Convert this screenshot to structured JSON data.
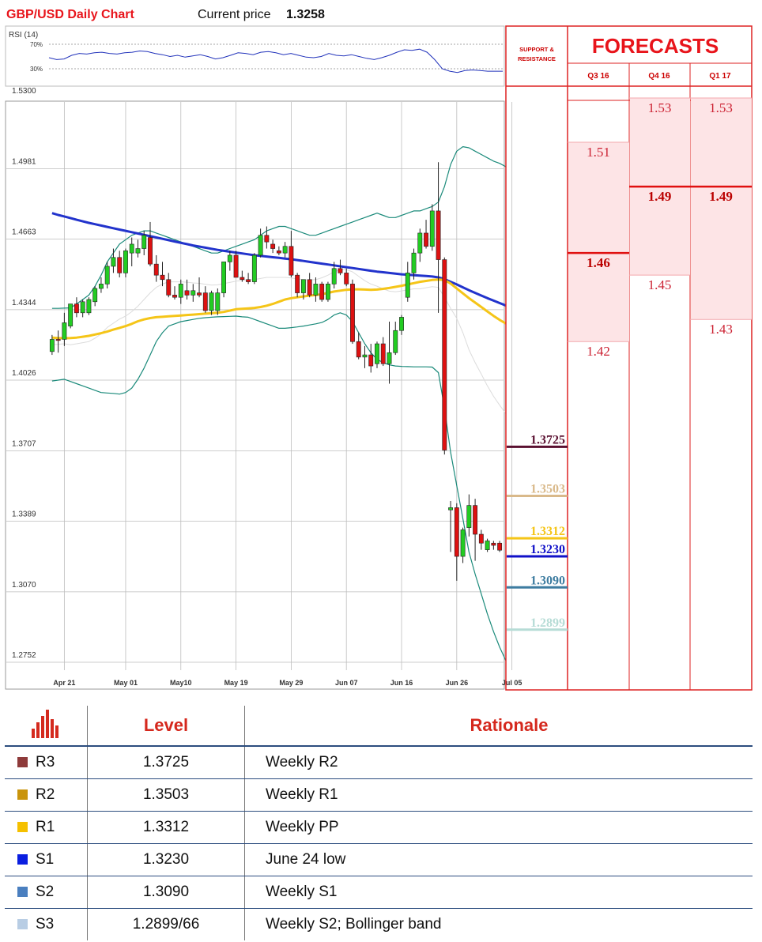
{
  "header": {
    "title": "GBP/USD Daily Chart",
    "price_label": "Current price",
    "price": "1.3258"
  },
  "rsi": {
    "label": "RSI (14)",
    "upper": "70%",
    "lower": "30%",
    "values": [
      48,
      45,
      46,
      52,
      55,
      54,
      56,
      57,
      55,
      54,
      56,
      57,
      59,
      58,
      55,
      53,
      50,
      52,
      49,
      51,
      53,
      50,
      46,
      48,
      52,
      56,
      55,
      53,
      57,
      58,
      56,
      53,
      55,
      52,
      49,
      48,
      50,
      55,
      52,
      51,
      53,
      50,
      47,
      45,
      48,
      52,
      57,
      61,
      60,
      62,
      57,
      45,
      30,
      26,
      24,
      27,
      28,
      27,
      26,
      26,
      26
    ]
  },
  "chart_data": {
    "type": "candlestick",
    "title": "GBP/USD Daily Chart",
    "ylim": [
      1.2752,
      1.53
    ],
    "y_ticks": [
      "1.5300",
      "1.4981",
      "1.4663",
      "1.4344",
      "1.4026",
      "1.3707",
      "1.3389",
      "1.3070",
      "1.2752"
    ],
    "x_labels": [
      "Apr 21",
      "May 01",
      "May10",
      "May 19",
      "May 29",
      "Jun 07",
      "Jun 16",
      "Jun 26",
      "Jul 05"
    ],
    "x_label_index": [
      2,
      12,
      21,
      30,
      39,
      48,
      57,
      66,
      75
    ],
    "candles": [
      {
        "o": 1.4155,
        "h": 1.423,
        "l": 1.414,
        "c": 1.421
      },
      {
        "o": 1.421,
        "h": 1.425,
        "l": 1.415,
        "c": 1.4205
      },
      {
        "o": 1.421,
        "h": 1.433,
        "l": 1.418,
        "c": 1.4285
      },
      {
        "o": 1.427,
        "h": 1.437,
        "l": 1.426,
        "c": 1.437
      },
      {
        "o": 1.437,
        "h": 1.44,
        "l": 1.431,
        "c": 1.433
      },
      {
        "o": 1.433,
        "h": 1.439,
        "l": 1.431,
        "c": 1.438
      },
      {
        "o": 1.433,
        "h": 1.44,
        "l": 1.432,
        "c": 1.439
      },
      {
        "o": 1.438,
        "h": 1.445,
        "l": 1.436,
        "c": 1.444
      },
      {
        "o": 1.444,
        "h": 1.449,
        "l": 1.442,
        "c": 1.446
      },
      {
        "o": 1.446,
        "h": 1.456,
        "l": 1.444,
        "c": 1.454
      },
      {
        "o": 1.454,
        "h": 1.462,
        "l": 1.451,
        "c": 1.458
      },
      {
        "o": 1.458,
        "h": 1.461,
        "l": 1.449,
        "c": 1.451
      },
      {
        "o": 1.451,
        "h": 1.462,
        "l": 1.449,
        "c": 1.461
      },
      {
        "o": 1.46,
        "h": 1.467,
        "l": 1.454,
        "c": 1.464
      },
      {
        "o": 1.46,
        "h": 1.466,
        "l": 1.458,
        "c": 1.462
      },
      {
        "o": 1.462,
        "h": 1.47,
        "l": 1.459,
        "c": 1.468
      },
      {
        "o": 1.467,
        "h": 1.474,
        "l": 1.454,
        "c": 1.455
      },
      {
        "o": 1.455,
        "h": 1.459,
        "l": 1.447,
        "c": 1.45
      },
      {
        "o": 1.45,
        "h": 1.456,
        "l": 1.445,
        "c": 1.448
      },
      {
        "o": 1.448,
        "h": 1.451,
        "l": 1.44,
        "c": 1.441
      },
      {
        "o": 1.441,
        "h": 1.445,
        "l": 1.439,
        "c": 1.44
      },
      {
        "o": 1.44,
        "h": 1.448,
        "l": 1.437,
        "c": 1.446
      },
      {
        "o": 1.443,
        "h": 1.448,
        "l": 1.439,
        "c": 1.441
      },
      {
        "o": 1.441,
        "h": 1.446,
        "l": 1.438,
        "c": 1.443
      },
      {
        "o": 1.442,
        "h": 1.449,
        "l": 1.44,
        "c": 1.441
      },
      {
        "o": 1.442,
        "h": 1.445,
        "l": 1.433,
        "c": 1.434
      },
      {
        "o": 1.434,
        "h": 1.443,
        "l": 1.432,
        "c": 1.442
      },
      {
        "o": 1.434,
        "h": 1.444,
        "l": 1.432,
        "c": 1.442
      },
      {
        "o": 1.442,
        "h": 1.456,
        "l": 1.44,
        "c": 1.456
      },
      {
        "o": 1.456,
        "h": 1.461,
        "l": 1.452,
        "c": 1.459
      },
      {
        "o": 1.459,
        "h": 1.461,
        "l": 1.449,
        "c": 1.449
      },
      {
        "o": 1.449,
        "h": 1.452,
        "l": 1.447,
        "c": 1.448
      },
      {
        "o": 1.448,
        "h": 1.451,
        "l": 1.446,
        "c": 1.447
      },
      {
        "o": 1.447,
        "h": 1.46,
        "l": 1.446,
        "c": 1.459
      },
      {
        "o": 1.459,
        "h": 1.471,
        "l": 1.458,
        "c": 1.468
      },
      {
        "o": 1.468,
        "h": 1.472,
        "l": 1.462,
        "c": 1.465
      },
      {
        "o": 1.464,
        "h": 1.466,
        "l": 1.46,
        "c": 1.462
      },
      {
        "o": 1.461,
        "h": 1.463,
        "l": 1.459,
        "c": 1.46
      },
      {
        "o": 1.46,
        "h": 1.465,
        "l": 1.458,
        "c": 1.463
      },
      {
        "o": 1.463,
        "h": 1.47,
        "l": 1.449,
        "c": 1.45
      },
      {
        "o": 1.45,
        "h": 1.451,
        "l": 1.44,
        "c": 1.442
      },
      {
        "o": 1.442,
        "h": 1.448,
        "l": 1.439,
        "c": 1.448
      },
      {
        "o": 1.448,
        "h": 1.451,
        "l": 1.44,
        "c": 1.441
      },
      {
        "o": 1.441,
        "h": 1.449,
        "l": 1.438,
        "c": 1.446
      },
      {
        "o": 1.446,
        "h": 1.447,
        "l": 1.438,
        "c": 1.439
      },
      {
        "o": 1.439,
        "h": 1.447,
        "l": 1.438,
        "c": 1.446
      },
      {
        "o": 1.446,
        "h": 1.456,
        "l": 1.444,
        "c": 1.453
      },
      {
        "o": 1.453,
        "h": 1.457,
        "l": 1.45,
        "c": 1.451
      },
      {
        "o": 1.451,
        "h": 1.453,
        "l": 1.445,
        "c": 1.446
      },
      {
        "o": 1.446,
        "h": 1.448,
        "l": 1.419,
        "c": 1.42
      },
      {
        "o": 1.42,
        "h": 1.424,
        "l": 1.412,
        "c": 1.413
      },
      {
        "o": 1.413,
        "h": 1.418,
        "l": 1.408,
        "c": 1.414
      },
      {
        "o": 1.414,
        "h": 1.419,
        "l": 1.406,
        "c": 1.409
      },
      {
        "o": 1.41,
        "h": 1.42,
        "l": 1.408,
        "c": 1.419
      },
      {
        "o": 1.419,
        "h": 1.422,
        "l": 1.409,
        "c": 1.41
      },
      {
        "o": 1.41,
        "h": 1.429,
        "l": 1.401,
        "c": 1.415
      },
      {
        "o": 1.415,
        "h": 1.429,
        "l": 1.414,
        "c": 1.425
      },
      {
        "o": 1.425,
        "h": 1.432,
        "l": 1.423,
        "c": 1.431
      },
      {
        "o": 1.44,
        "h": 1.456,
        "l": 1.438,
        "c": 1.451
      },
      {
        "o": 1.451,
        "h": 1.462,
        "l": 1.448,
        "c": 1.46
      },
      {
        "o": 1.46,
        "h": 1.471,
        "l": 1.456,
        "c": 1.469
      },
      {
        "o": 1.469,
        "h": 1.475,
        "l": 1.462,
        "c": 1.463
      },
      {
        "o": 1.463,
        "h": 1.482,
        "l": 1.461,
        "c": 1.479
      },
      {
        "o": 1.479,
        "h": 1.501,
        "l": 1.433,
        "c": 1.457
      },
      {
        "o": 1.457,
        "h": 1.458,
        "l": 1.369,
        "c": 1.371
      },
      {
        "o": 1.344,
        "h": 1.348,
        "l": 1.325,
        "c": 1.345
      },
      {
        "o": 1.345,
        "h": 1.347,
        "l": 1.312,
        "c": 1.323
      },
      {
        "o": 1.323,
        "h": 1.336,
        "l": 1.32,
        "c": 1.335
      },
      {
        "o": 1.336,
        "h": 1.351,
        "l": 1.332,
        "c": 1.346
      },
      {
        "o": 1.346,
        "h": 1.349,
        "l": 1.321,
        "c": 1.333
      },
      {
        "o": 1.333,
        "h": 1.335,
        "l": 1.326,
        "c": 1.329
      },
      {
        "o": 1.326,
        "h": 1.331,
        "l": 1.325,
        "c": 1.33
      },
      {
        "o": 1.329,
        "h": 1.33,
        "l": 1.326,
        "c": 1.328
      },
      {
        "o": 1.329,
        "h": 1.33,
        "l": 1.325,
        "c": 1.3258
      }
    ],
    "ma_200": [
      1.478,
      1.4772,
      1.4765,
      1.4758,
      1.475,
      1.4743,
      1.4736,
      1.473,
      1.4724,
      1.4718,
      1.4712,
      1.4706,
      1.47,
      1.4694,
      1.4688,
      1.4682,
      1.4676,
      1.467,
      1.4664,
      1.4658,
      1.4652,
      1.4646,
      1.464,
      1.4634,
      1.4629,
      1.4624,
      1.4619,
      1.4614,
      1.461,
      1.4606,
      1.4602,
      1.4598,
      1.4594,
      1.459,
      1.4587,
      1.4584,
      1.4581,
      1.4578,
      1.4575,
      1.4572,
      1.4568,
      1.4564,
      1.456,
      1.4556,
      1.4552,
      1.4548,
      1.4544,
      1.454,
      1.4536,
      1.4532,
      1.4528,
      1.4524,
      1.452,
      1.4516,
      1.4513,
      1.451,
      1.4507,
      1.4504,
      1.4502,
      1.45,
      1.4498,
      1.4496,
      1.4494,
      1.449,
      1.4482,
      1.447,
      1.4458,
      1.4445,
      1.4432,
      1.442,
      1.4408,
      1.4396,
      1.4385,
      1.4374,
      1.4363
    ],
    "ma_50": [
      1.4218,
      1.4216,
      1.4215,
      1.4216,
      1.4218,
      1.4222,
      1.4226,
      1.4232,
      1.4238,
      1.4245,
      1.4254,
      1.4262,
      1.427,
      1.428,
      1.4292,
      1.43,
      1.4306,
      1.431,
      1.4312,
      1.4314,
      1.4316,
      1.4318,
      1.432,
      1.4322,
      1.4324,
      1.4326,
      1.4328,
      1.433,
      1.4334,
      1.434,
      1.4346,
      1.4348,
      1.435,
      1.4352,
      1.4356,
      1.4362,
      1.437,
      1.438,
      1.439,
      1.4396,
      1.44,
      1.4404,
      1.4408,
      1.441,
      1.4414,
      1.442,
      1.4426,
      1.443,
      1.4434,
      1.4436,
      1.4436,
      1.4435,
      1.4434,
      1.4435,
      1.4438,
      1.4442,
      1.4447,
      1.4452,
      1.4458,
      1.4464,
      1.447,
      1.4474,
      1.4478,
      1.448,
      1.4478,
      1.4462,
      1.444,
      1.4418,
      1.4396,
      1.4376,
      1.4356,
      1.4336,
      1.4316,
      1.4298,
      1.4282
    ],
    "bb_upper": [
      1.435,
      1.435,
      1.4351,
      1.4352,
      1.437,
      1.439,
      1.441,
      1.445,
      1.45,
      1.456,
      1.46,
      1.464,
      1.466,
      1.468,
      1.469,
      1.47,
      1.47,
      1.469,
      1.468,
      1.467,
      1.466,
      1.465,
      1.464,
      1.463,
      1.462,
      1.461,
      1.46,
      1.46,
      1.461,
      1.462,
      1.463,
      1.464,
      1.465,
      1.466,
      1.468,
      1.47,
      1.471,
      1.472,
      1.472,
      1.471,
      1.47,
      1.469,
      1.468,
      1.468,
      1.469,
      1.47,
      1.471,
      1.472,
      1.473,
      1.474,
      1.475,
      1.476,
      1.477,
      1.478,
      1.477,
      1.476,
      1.476,
      1.477,
      1.478,
      1.479,
      1.479,
      1.48,
      1.481,
      1.483,
      1.49,
      1.5,
      1.506,
      1.508,
      1.5075,
      1.506,
      1.5045,
      1.503,
      1.5015,
      1.5005,
      1.499
    ],
    "bb_lower": [
      1.4022,
      1.4026,
      1.403,
      1.402,
      1.401,
      1.4,
      1.399,
      1.398,
      1.397,
      1.3968,
      1.3966,
      1.3963,
      1.397,
      1.399,
      1.403,
      1.408,
      1.414,
      1.42,
      1.424,
      1.427,
      1.428,
      1.429,
      1.4295,
      1.43,
      1.4305,
      1.4308,
      1.431,
      1.4312,
      1.4313,
      1.4314,
      1.4315,
      1.4312,
      1.431,
      1.43,
      1.429,
      1.428,
      1.427,
      1.426,
      1.426,
      1.4263,
      1.4266,
      1.427,
      1.4275,
      1.428,
      1.4286,
      1.43,
      1.432,
      1.433,
      1.432,
      1.429,
      1.424,
      1.419,
      1.415,
      1.412,
      1.4105,
      1.4095,
      1.409,
      1.4088,
      1.4087,
      1.4086,
      1.4086,
      1.4086,
      1.4085,
      1.406,
      1.39,
      1.37,
      1.355,
      1.34,
      1.325,
      1.315,
      1.306,
      1.297,
      1.289,
      1.282,
      1.276
    ],
    "bb_mid": [
      1.4186,
      1.4188,
      1.419,
      1.4186,
      1.419,
      1.4195,
      1.42,
      1.4215,
      1.4235,
      1.4264,
      1.4283,
      1.4302,
      1.4315,
      1.4335,
      1.436,
      1.439,
      1.442,
      1.4445,
      1.446,
      1.447,
      1.447,
      1.447,
      1.4468,
      1.4465,
      1.4463,
      1.4459,
      1.4455,
      1.4456,
      1.4462,
      1.4467,
      1.4473,
      1.4476,
      1.448,
      1.448,
      1.4485,
      1.449,
      1.449,
      1.449,
      1.449,
      1.4487,
      1.4483,
      1.448,
      1.4478,
      1.448,
      1.4488,
      1.45,
      1.4515,
      1.4525,
      1.4525,
      1.4515,
      1.4495,
      1.4475,
      1.446,
      1.445,
      1.4438,
      1.4428,
      1.4425,
      1.4429,
      1.4434,
      1.4438,
      1.4438,
      1.4443,
      1.4448,
      1.4445,
      1.44,
      1.435,
      1.4305,
      1.424,
      1.4163,
      1.4105,
      1.4053,
      1.4,
      1.3953,
      1.3913,
      1.3875
    ]
  },
  "support_resistance": {
    "header_line1": "SUPPORT &",
    "header_line2": "RESISTANCE",
    "levels": [
      {
        "label": "1.3725",
        "value": 1.3725,
        "color": "#5a1030"
      },
      {
        "label": "1.3503",
        "value": 1.3503,
        "color": "#d9b98a"
      },
      {
        "label": "1.3312",
        "value": 1.3312,
        "color": "#f5c518"
      },
      {
        "label": "1.3230",
        "value": 1.323,
        "color": "#1010c8"
      },
      {
        "label": "1.3090",
        "value": 1.309,
        "color": "#3d7ca0"
      },
      {
        "label": "1.2899",
        "value": 1.2899,
        "color": "#b6dcd6"
      }
    ]
  },
  "forecasts": {
    "title": "FORECASTS",
    "columns": [
      {
        "label": "Q3 16",
        "values": [
          {
            "text": "1.51",
            "value": 1.51,
            "bold": false
          },
          {
            "text": "1.46",
            "value": 1.46,
            "bold": true
          },
          {
            "text": "1.42",
            "value": 1.42,
            "bold": false
          }
        ]
      },
      {
        "label": "Q4 16",
        "values": [
          {
            "text": "1.53",
            "value": 1.53,
            "bold": false
          },
          {
            "text": "1.49",
            "value": 1.49,
            "bold": true
          },
          {
            "text": "1.45",
            "value": 1.45,
            "bold": false
          }
        ]
      },
      {
        "label": "Q1 17",
        "values": [
          {
            "text": "1.53",
            "value": 1.53,
            "bold": false
          },
          {
            "text": "1.49",
            "value": 1.49,
            "bold": true
          },
          {
            "text": "1.43",
            "value": 1.43,
            "bold": false
          }
        ]
      }
    ]
  },
  "table": {
    "headers": {
      "icon": "bar-chart-icon",
      "level": "Level",
      "rationale": "Rationale"
    },
    "rows": [
      {
        "tag": "R3",
        "color": "#8e3a3a",
        "level": "1.3725",
        "rationale": "Weekly R2"
      },
      {
        "tag": "R2",
        "color": "#c9940c",
        "level": "1.3503",
        "rationale": "Weekly R1"
      },
      {
        "tag": "R1",
        "color": "#f5c000",
        "level": "1.3312",
        "rationale": "Weekly PP"
      },
      {
        "tag": "S1",
        "color": "#0a1ee0",
        "level": "1.3230",
        "rationale": "June 24 low"
      },
      {
        "tag": "S2",
        "color": "#4a7fbf",
        "level": "1.3090",
        "rationale": "Weekly S1"
      },
      {
        "tag": "S3",
        "color": "#b8cde4",
        "level": "1.2899/66",
        "rationale": "Weekly S2; Bollinger band"
      }
    ]
  }
}
